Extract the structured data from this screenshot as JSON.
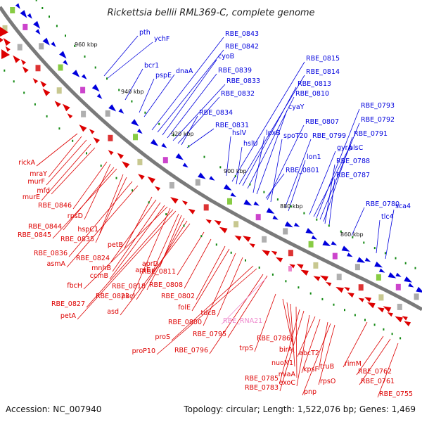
{
  "title": "Rickettsia bellii RML369-C, complete genome",
  "footer": {
    "accession": "Accession: NC_007940",
    "summary": "Topology: circular; Length: 1,522,076 bp; Genes: 1,469"
  },
  "colors": {
    "forward": "#0000dd",
    "reverse": "#dd0000",
    "rna": "#ee88cc",
    "backbone": "#777777",
    "tick": "#118811"
  },
  "scale_labels": [
    "960 kbp",
    "940 kbp",
    "920 kbp",
    "900 kbp",
    "880 kbp",
    "860 kbp"
  ],
  "labels_forward": [
    "pth",
    "ychF",
    "bcr1",
    "pspE",
    "dnaA",
    "RBE_0843",
    "RBE_0842",
    "cyoB",
    "RBE_0839",
    "RBE_0833",
    "RBE_0832",
    "RBE_0834",
    "RBE_0831",
    "hslV",
    "hslU",
    "lpxB",
    "RBE_0815",
    "RBE_0814",
    "RBE_0813",
    "RBE_0810",
    "cyaY",
    "RBE_0807",
    "spoT20",
    "RBE_0799",
    "lon1",
    "RBE_0801",
    "RBE_0793",
    "RBE_0792",
    "RBE_0791",
    "gyrA",
    "plsC",
    "RBE_0788",
    "RBE_0787",
    "RBE_0780",
    "tlc4",
    "sca4"
  ],
  "labels_reverse": [
    "rickA",
    "mraY",
    "murF",
    "murE",
    "mfd",
    "RBE_0846",
    "rpsD",
    "RBE_0844",
    "RBE_0845",
    "hspC1",
    "RBE_0835",
    "RBE_0836",
    "asmA",
    "petB",
    "RBE_0824",
    "mnhB",
    "ccmB",
    "fbcH",
    "RBE_0823",
    "RBE_0827",
    "petA",
    "aprE",
    "aprD",
    "RBE_0818",
    "pkcI",
    "asd",
    "RBE_0811",
    "RBE_0808",
    "RBE_0802",
    "folE",
    "RBE_0800",
    "tdcB",
    "proS",
    "proP10",
    "RBE_0795",
    "RBE_0796",
    "trpS",
    "RBE_0786",
    "birA",
    "nuoN1",
    "miaA",
    "RBE_0785",
    "RBE_0783",
    "exoC",
    "abcT2",
    "kpsF",
    "truB",
    "rpsO",
    "pnp",
    "rimM",
    "RBE_0762",
    "RBE_0761",
    "RBE_0755"
  ],
  "labels_rna": [
    "RBE_RNA21"
  ]
}
